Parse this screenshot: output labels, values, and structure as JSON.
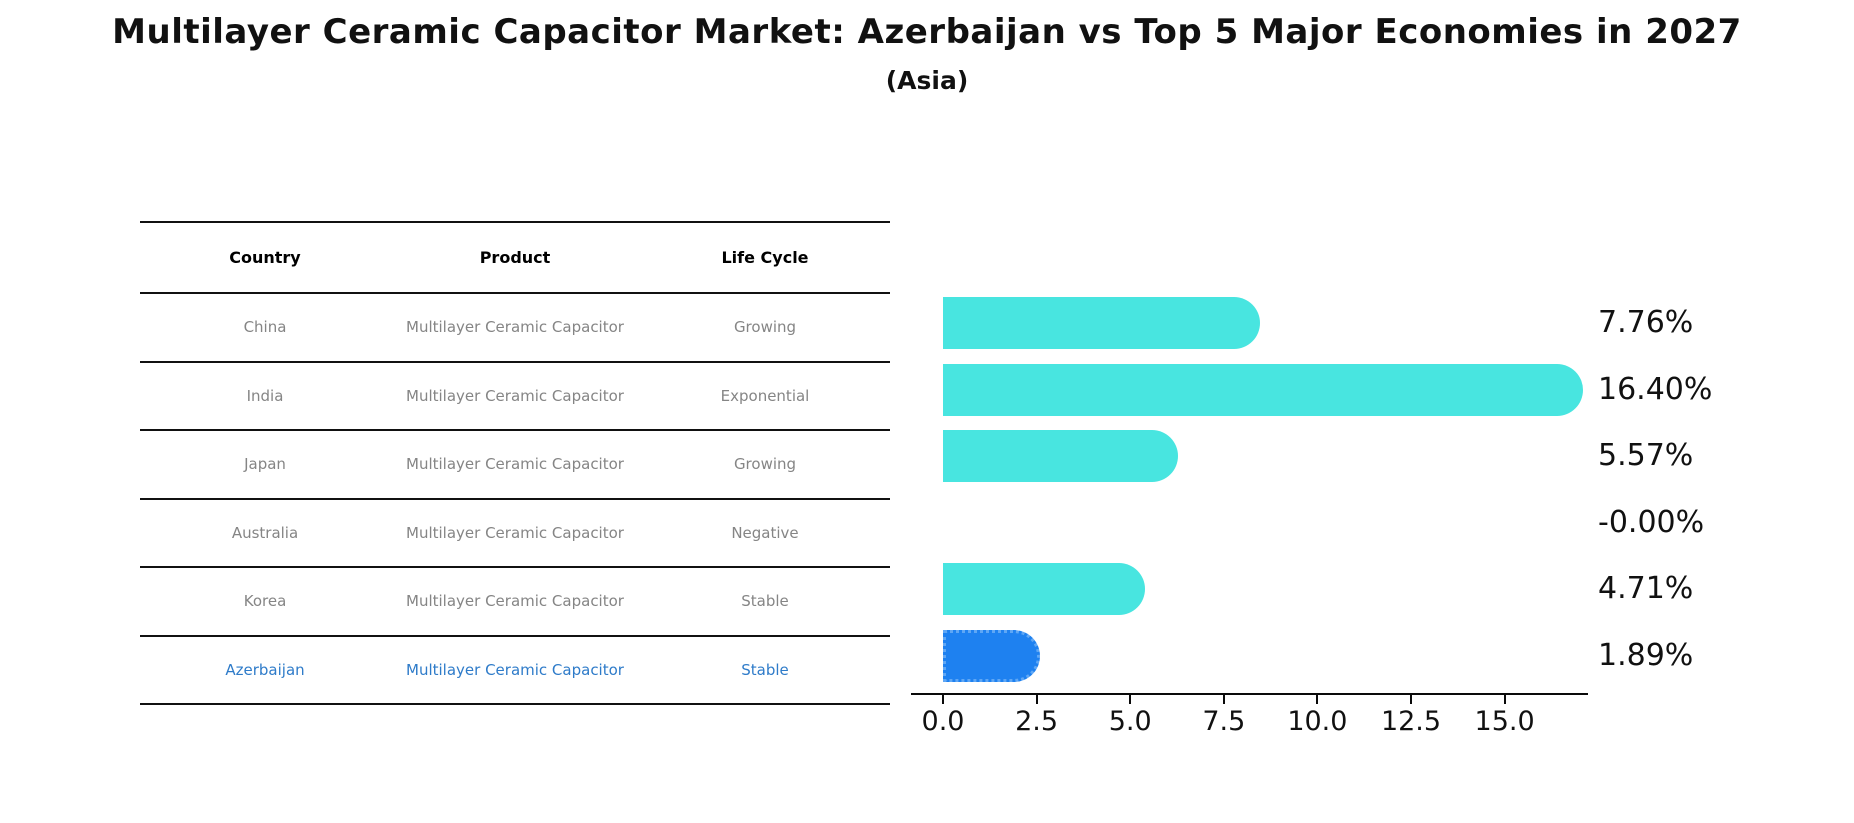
{
  "table": {
    "headers": [
      "Country",
      "Product",
      "Life Cycle"
    ],
    "rows": [
      {
        "country": "China",
        "product": "Multilayer Ceramic Capacitor",
        "life_cycle": "Growing",
        "highlight": false
      },
      {
        "country": "India",
        "product": "Multilayer Ceramic Capacitor",
        "life_cycle": "Exponential",
        "highlight": false
      },
      {
        "country": "Japan",
        "product": "Multilayer Ceramic Capacitor",
        "life_cycle": "Growing",
        "highlight": false
      },
      {
        "country": "Australia",
        "product": "Multilayer Ceramic Capacitor",
        "life_cycle": "Negative",
        "highlight": false
      },
      {
        "country": "Korea",
        "product": "Multilayer Ceramic Capacitor",
        "life_cycle": "Stable",
        "highlight": false
      },
      {
        "country": "Azerbaijan",
        "product": "Multilayer Ceramic Capacitor",
        "life_cycle": "Stable",
        "highlight": true
      }
    ]
  },
  "chart_data": {
    "type": "bar",
    "orientation": "horizontal",
    "title": "Multilayer Ceramic Capacitor Market: Azerbaijan vs Top 5 Major Economies in 2027",
    "subtitle": "(Asia)",
    "categories": [
      "China",
      "India",
      "Japan",
      "Australia",
      "Korea",
      "Azerbaijan"
    ],
    "values": [
      7.76,
      16.4,
      5.57,
      -0.0,
      4.71,
      1.89
    ],
    "value_labels": [
      "7.76%",
      "16.40%",
      "5.57%",
      "-0.00%",
      "4.71%",
      "1.89%"
    ],
    "x_tick_values": [
      0.0,
      2.5,
      5.0,
      7.5,
      10.0,
      12.5,
      15.0
    ],
    "x_tick_labels": [
      "0.0",
      "2.5",
      "5.0",
      "7.5",
      "10.0",
      "12.5",
      "15.0"
    ],
    "xlim": [
      0,
      17.2
    ],
    "xlabel": "",
    "ylabel": "",
    "grid": false,
    "legend": false,
    "highlight_index": 5,
    "colors": {
      "bar": "#48E5E0",
      "highlight_bar": "#1E81F0",
      "highlight_border": "#5FA7F5",
      "highlight_text": "#2E7BC9",
      "cell_text": "#858585",
      "axis": "#0a0a0a"
    }
  }
}
